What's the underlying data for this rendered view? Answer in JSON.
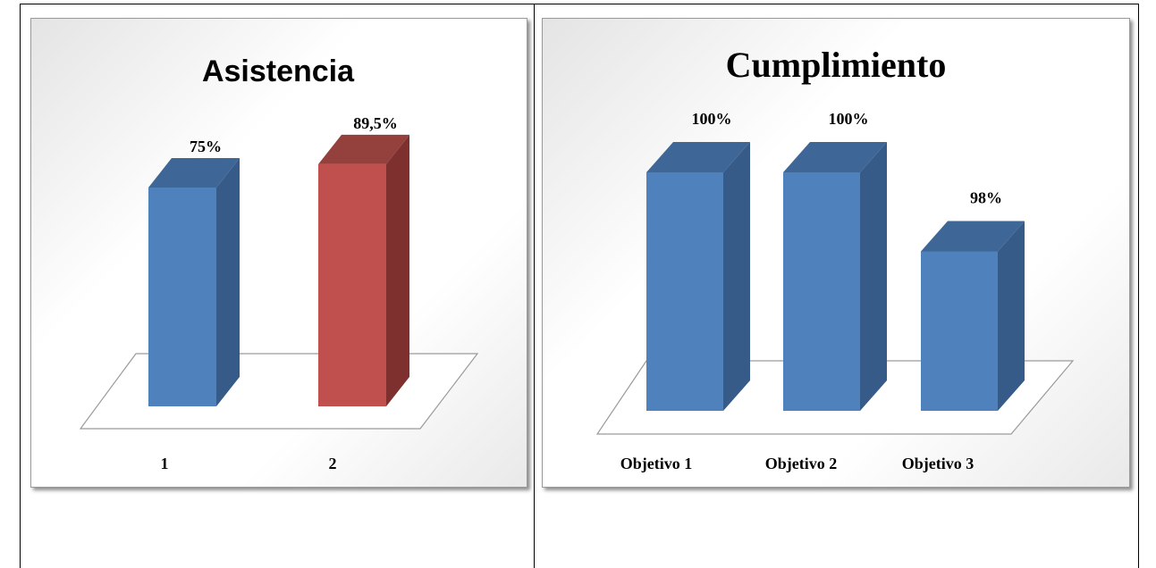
{
  "colors": {
    "blue_front": "#4f81bd",
    "blue_side": "#365b89",
    "blue_top": "#3e6696",
    "red_front": "#c0504d",
    "red_side": "#7d302e",
    "red_top": "#94403d"
  },
  "chart_data": [
    {
      "type": "bar",
      "title": "Asistencia",
      "categories": [
        "1",
        "2"
      ],
      "values": [
        75,
        89.5
      ],
      "data_labels": [
        "75%",
        "89,5%"
      ],
      "bar_colors": [
        "blue",
        "red"
      ],
      "style": "3d-column",
      "ylim": [
        0,
        100
      ],
      "grid": false,
      "legend": "none"
    },
    {
      "type": "bar",
      "title": "Cumplimiento",
      "categories": [
        "Objetivo 1",
        "Objetivo 2",
        "Objetivo 3"
      ],
      "values": [
        100,
        100,
        98
      ],
      "data_labels": [
        "100%",
        "100%",
        "98%"
      ],
      "bar_colors": [
        "blue",
        "blue",
        "blue"
      ],
      "style": "3d-column",
      "ylim": [
        96,
        100
      ],
      "grid": false,
      "legend": "none"
    }
  ]
}
